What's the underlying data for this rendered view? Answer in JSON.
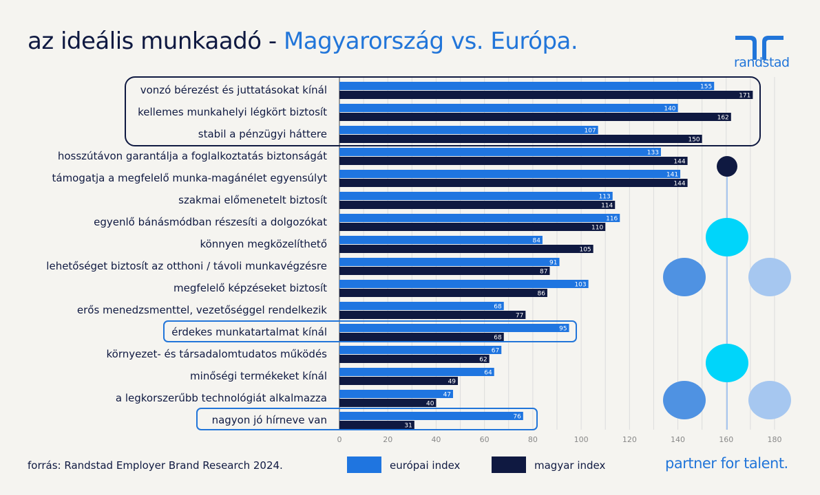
{
  "title": {
    "part1": "az ideális munkaadó - ",
    "part2": "Magyarország vs. Európa."
  },
  "logo": {
    "text": "randstad"
  },
  "source": "forrás: Randstad Employer Brand Research 2024.",
  "tagline": "partner for talent.",
  "colors": {
    "europe": "#1f75e0",
    "hungary": "#0f1941",
    "text": "#0f1941",
    "accent": "#2175d9"
  },
  "chart_data": {
    "type": "bar",
    "orientation": "horizontal",
    "title": "az ideális munkaadó - Magyarország vs. Európa.",
    "categories": [
      "vonzó bérezést és juttatásokat kínál",
      "kellemes munkahelyi légkört biztosít",
      "stabil a pénzügyi háttere",
      "hosszútávon garantálja a foglalkoztatás biztonságát",
      "támogatja a megfelelő munka-magánélet egyensúlyt",
      "szakmai előmenetelt biztosít",
      "egyenlő bánásmódban részesíti a dolgozókat",
      "könnyen megközelíthető",
      "lehetőséget biztosít az otthoni / távoli munkavégzésre",
      "megfelelő képzéseket biztosít",
      "erős menedzsmenttel, vezetőséggel rendelkezik",
      "érdekes munkatartalmat kínál",
      "környezet- és társadalomtudatos működés",
      "minőségi termékeket kínál",
      "a legkorszerűbb technológiát alkalmazza",
      "nagyon jó hírneve van"
    ],
    "series": [
      {
        "name": "európai index",
        "values": [
          155,
          140,
          107,
          133,
          141,
          113,
          116,
          84,
          91,
          103,
          68,
          95,
          67,
          64,
          47,
          76
        ]
      },
      {
        "name": "magyar index",
        "values": [
          171,
          162,
          150,
          144,
          144,
          114,
          110,
          105,
          87,
          86,
          77,
          68,
          62,
          49,
          40,
          31
        ]
      }
    ],
    "xlim": [
      0,
      180
    ],
    "xticks": [
      "0",
      "20",
      "40",
      "60",
      "80",
      "100",
      "120",
      "140",
      "160",
      "180"
    ],
    "grid": true,
    "legend": "bottom",
    "highlighted_groups": [
      [
        0,
        1,
        2
      ],
      [
        11
      ],
      [
        15
      ]
    ]
  }
}
